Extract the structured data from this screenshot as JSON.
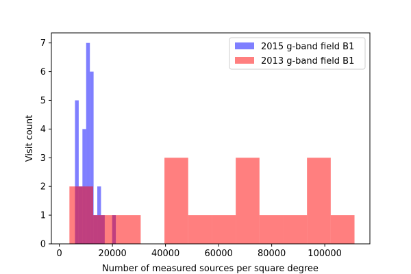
{
  "chart_data": {
    "type": "bar",
    "subtype": "histogram-overlay",
    "title": "",
    "xlabel": "Number of measured sources per square degree",
    "ylabel": "Visit count",
    "xlim": [
      -3000,
      117000
    ],
    "ylim": [
      0,
      7.35
    ],
    "xticks": [
      0,
      20000,
      40000,
      60000,
      80000,
      100000
    ],
    "xtick_labels": [
      "0",
      "20000",
      "40000",
      "60000",
      "80000",
      "100000"
    ],
    "yticks": [
      0,
      1,
      2,
      3,
      4,
      5,
      6,
      7
    ],
    "ytick_labels": [
      "0",
      "1",
      "2",
      "3",
      "4",
      "5",
      "6",
      "7"
    ],
    "grid": false,
    "legend_position": "top-right",
    "series": [
      {
        "name": "2015 g-band field B1",
        "color": "#0000ff",
        "alpha": 0.5,
        "bin_edges": [
          5900,
          7300,
          8700,
          10100,
          11500,
          12900,
          14300,
          15700,
          17100,
          18500,
          19900,
          21300
        ],
        "counts": [
          5,
          2,
          4,
          7,
          6,
          1,
          2,
          1,
          0,
          0,
          1
        ]
      },
      {
        "name": "2013 g-band field B1",
        "color": "#ff0000",
        "alpha": 0.5,
        "bin_edges": [
          3800,
          12750,
          21700,
          30650,
          39600,
          48550,
          57500,
          66450,
          75400,
          84350,
          93300,
          102250,
          111200
        ],
        "counts": [
          2,
          1,
          1,
          0,
          3,
          1,
          1,
          3,
          1,
          1,
          3,
          1
        ]
      }
    ]
  }
}
